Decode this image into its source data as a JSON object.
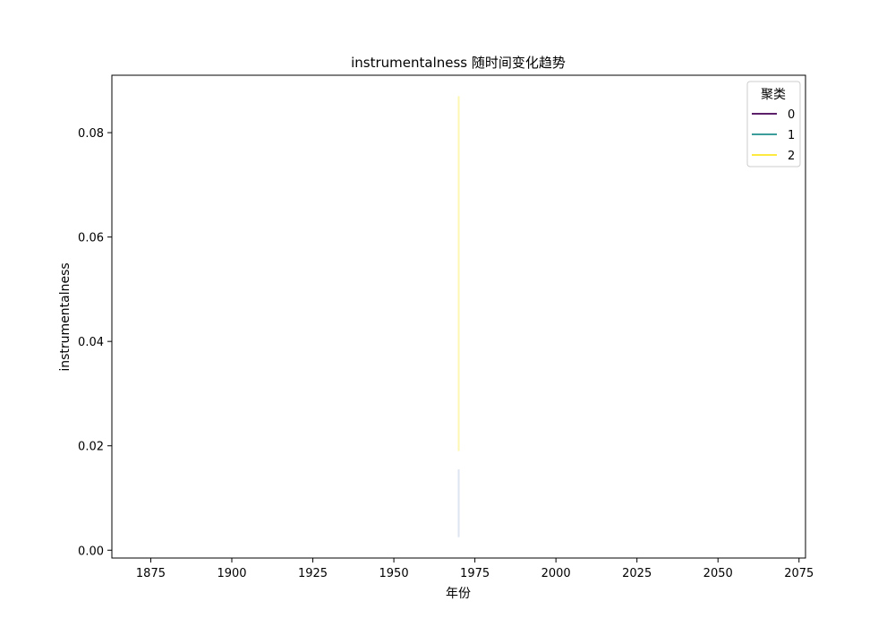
{
  "chart_data": {
    "type": "line",
    "title": "instrumentalness 随时间变化趋势",
    "xlabel": "年份",
    "ylabel": "instrumentalness",
    "xlim": [
      1863,
      2077
    ],
    "ylim": [
      -0.0015,
      0.091
    ],
    "x_ticks": [
      1875,
      1900,
      1925,
      1950,
      1975,
      2000,
      2025,
      2050,
      2075
    ],
    "y_ticks": [
      0.0,
      0.02,
      0.04,
      0.06,
      0.08
    ],
    "y_tick_labels": [
      "0.00",
      "0.02",
      "0.04",
      "0.06",
      "0.08"
    ],
    "grid": false,
    "legend": {
      "title": "聚类",
      "placement": "top-right"
    },
    "series": [
      {
        "name": "0",
        "color": "#440154",
        "points": []
      },
      {
        "name": "1",
        "color": "#21918c",
        "points": []
      },
      {
        "name": "2",
        "color": "#fde725",
        "points": []
      }
    ],
    "bands": [
      {
        "series": "2",
        "x": 1970,
        "ymin": 0.019,
        "ymax": 0.087,
        "color": "#fde725"
      },
      {
        "series": "1",
        "x": 1970,
        "ymin": 0.0025,
        "ymax": 0.0155,
        "color": "#9ab4d4"
      }
    ]
  }
}
